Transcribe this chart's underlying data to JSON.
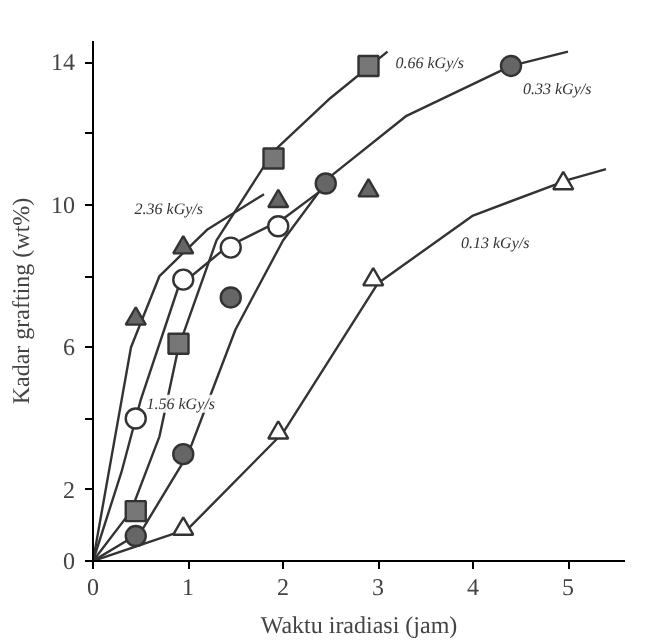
{
  "chart_data": {
    "type": "scatter",
    "xlabel": "Waktu iradiasi (jam)",
    "ylabel": "Kadar grafting (wt%)",
    "xlim": [
      0,
      5.6
    ],
    "ylim": [
      0,
      14.6
    ],
    "xticks": [
      0,
      1,
      2,
      3,
      4,
      5
    ],
    "yticks": [
      0,
      2,
      {
        "value": 4,
        "label": null
      },
      6,
      {
        "value": 8,
        "label": null
      },
      10,
      {
        "value": 12,
        "label": null
      },
      14
    ],
    "grid": false,
    "series": [
      {
        "type": "line",
        "name": "0.66 kGy/s",
        "color": "#333333",
        "x": [
          0,
          0.4,
          0.7,
          0.9,
          1.3,
          1.9,
          2.5,
          3.1
        ],
        "values": [
          0,
          1.4,
          3.5,
          6.0,
          9.0,
          11.5,
          13.0,
          14.3
        ]
      },
      {
        "type": "line",
        "name": "0.33 kGy/s",
        "color": "#333333",
        "x": [
          0,
          0.5,
          1,
          1.5,
          2,
          2.5,
          3.3,
          4.4,
          5
        ],
        "values": [
          0,
          0.8,
          3.0,
          6.5,
          9.0,
          10.8,
          12.5,
          13.9,
          14.3
        ]
      },
      {
        "type": "line",
        "name": "0.13 kGy/s",
        "color": "#333333",
        "x": [
          0,
          1,
          2,
          3,
          4,
          5,
          5.4
        ],
        "values": [
          0,
          0.9,
          3.6,
          7.8,
          9.7,
          10.7,
          11.0
        ]
      },
      {
        "type": "line",
        "name": "2.36 kGy/s",
        "color": "#333333",
        "x": [
          0,
          0.2,
          0.4,
          0.7,
          1.2,
          1.8
        ],
        "values": [
          0,
          3.0,
          6.0,
          8.0,
          9.3,
          10.3
        ]
      },
      {
        "type": "line",
        "name": "1.56 kGy/s",
        "color": "#333333",
        "x": [
          0,
          0.3,
          0.5,
          0.9,
          1.4,
          2.0,
          2.4
        ],
        "values": [
          0,
          2.5,
          4.5,
          7.7,
          8.8,
          9.6,
          10.4
        ]
      },
      {
        "marker": "square",
        "color": "#777777",
        "x": [
          0.45,
          0.9,
          1.9,
          2.9
        ],
        "values": [
          1.4,
          6.1,
          11.3,
          13.9
        ]
      },
      {
        "marker": "circle",
        "color": "#666666",
        "x": [
          0.45,
          0.95,
          1.45,
          2.45,
          4.4
        ],
        "values": [
          0.7,
          3.0,
          7.4,
          10.6,
          13.9
        ]
      },
      {
        "marker": "triangle",
        "color": "#ffffff",
        "x": [
          0.95,
          1.95,
          2.95,
          4.95
        ],
        "values": [
          0.9,
          3.6,
          7.9,
          10.6
        ]
      },
      {
        "marker": "triangle",
        "color": "#666666",
        "x": [
          0.45,
          0.95,
          1.95,
          2.9
        ],
        "values": [
          6.8,
          8.8,
          10.1,
          10.4
        ]
      },
      {
        "marker": "circle",
        "color": "#ffffff",
        "x": [
          0.45,
          0.95,
          1.45,
          1.95
        ],
        "values": [
          4.0,
          7.9,
          8.8,
          9.4
        ]
      }
    ]
  }
}
